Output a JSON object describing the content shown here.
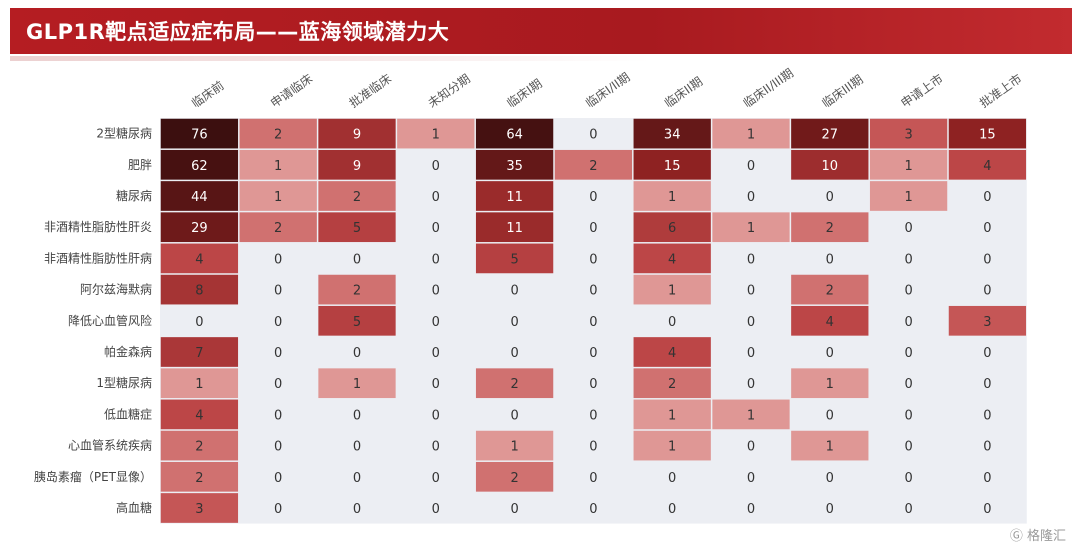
{
  "header": {
    "title": "GLP1R靶点适应症布局——蓝海领域潜力大"
  },
  "watermark": {
    "text": "格隆汇"
  },
  "colors": {
    "title_bar": "#b51d22",
    "cell_empty": "#eceef3",
    "cell_low": "#f6e0df",
    "cell_high": "#3c0f0f",
    "text_dark": "#333333",
    "text_light": "#ffffff"
  },
  "chart_data": {
    "type": "heatmap",
    "columns": [
      "临床前",
      "申请临床",
      "批准临床",
      "未知分期",
      "临床I期",
      "临床I/II期",
      "临床II期",
      "临床II/III期",
      "临床III期",
      "申请上市",
      "批准上市"
    ],
    "rows": [
      "2型糖尿病",
      "肥胖",
      "糖尿病",
      "非酒精性脂肪性肝炎",
      "非酒精性脂肪性肝病",
      "阿尔兹海默病",
      "降低心血管风险",
      "帕金森病",
      "1型糖尿病",
      "低血糖症",
      "心血管系统疾病",
      "胰岛素瘤（PET显像）",
      "高血糖"
    ],
    "values": [
      [
        76,
        2,
        9,
        1,
        64,
        0,
        34,
        1,
        27,
        3,
        15
      ],
      [
        62,
        1,
        9,
        0,
        35,
        2,
        15,
        0,
        10,
        1,
        4
      ],
      [
        44,
        1,
        2,
        0,
        11,
        0,
        1,
        0,
        0,
        1,
        0
      ],
      [
        29,
        2,
        5,
        0,
        11,
        0,
        6,
        1,
        2,
        0,
        0
      ],
      [
        4,
        0,
        0,
        0,
        5,
        0,
        4,
        0,
        0,
        0,
        0
      ],
      [
        8,
        0,
        2,
        0,
        0,
        0,
        1,
        0,
        2,
        0,
        0
      ],
      [
        0,
        0,
        5,
        0,
        0,
        0,
        0,
        0,
        4,
        0,
        3
      ],
      [
        7,
        0,
        0,
        0,
        0,
        0,
        4,
        0,
        0,
        0,
        0
      ],
      [
        1,
        0,
        1,
        0,
        2,
        0,
        2,
        0,
        1,
        0,
        0
      ],
      [
        4,
        0,
        0,
        0,
        0,
        0,
        1,
        1,
        0,
        0,
        0
      ],
      [
        2,
        0,
        0,
        0,
        1,
        0,
        1,
        0,
        1,
        0,
        0
      ],
      [
        2,
        0,
        0,
        0,
        2,
        0,
        0,
        0,
        0,
        0,
        0
      ],
      [
        3,
        0,
        0,
        0,
        0,
        0,
        0,
        0,
        0,
        0,
        0
      ]
    ]
  }
}
